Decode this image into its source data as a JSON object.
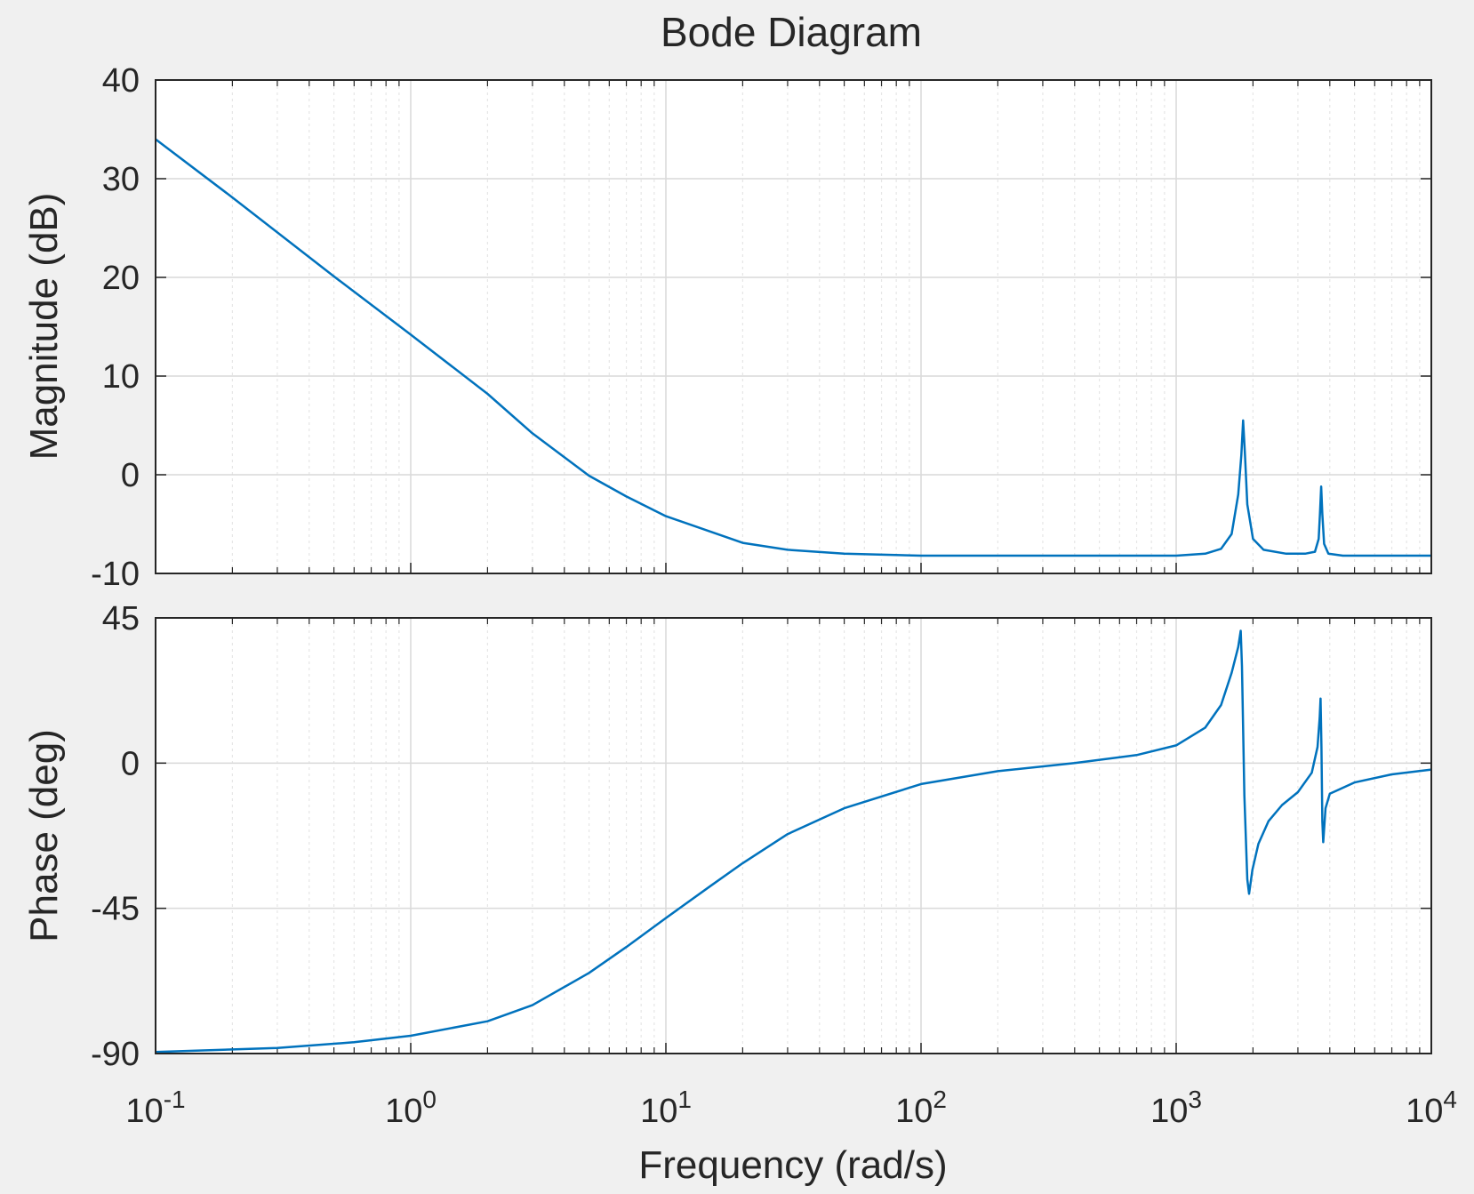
{
  "window": {
    "title": "Bode Diagram"
  },
  "colors": {
    "line": "#0072bd",
    "background": "#f0f0f0",
    "axes_bg": "#ffffff",
    "grid": "#d9d9d9",
    "axis": "#262626"
  },
  "chart_data": {
    "type": "line",
    "title": "Bode Diagram",
    "xlabel": "Frequency  (rad/s)",
    "xscale": "log",
    "xlim": [
      0.1,
      10000
    ],
    "x_ticks": [
      {
        "base": "10",
        "exp": "-1"
      },
      {
        "base": "10",
        "exp": "0"
      },
      {
        "base": "10",
        "exp": "1"
      },
      {
        "base": "10",
        "exp": "2"
      },
      {
        "base": "10",
        "exp": "3"
      },
      {
        "base": "10",
        "exp": "4"
      }
    ],
    "grid": true,
    "magnitude": {
      "ylabel": "Magnitude (dB)",
      "ylim": [
        -10,
        40
      ],
      "yticks": [
        "40",
        "30",
        "20",
        "10",
        "0",
        "-10"
      ],
      "points": [
        [
          0.1,
          34
        ],
        [
          0.2,
          28.1
        ],
        [
          0.5,
          20.1
        ],
        [
          1,
          14.2
        ],
        [
          2,
          8.2
        ],
        [
          3,
          4.2
        ],
        [
          5,
          -0.1
        ],
        [
          7,
          -2.2
        ],
        [
          10,
          -4.2
        ],
        [
          20,
          -6.9
        ],
        [
          30,
          -7.6
        ],
        [
          50,
          -8.0
        ],
        [
          100,
          -8.2
        ],
        [
          500,
          -8.2
        ],
        [
          1000,
          -8.2
        ],
        [
          1300,
          -8.0
        ],
        [
          1500,
          -7.5
        ],
        [
          1650,
          -6
        ],
        [
          1750,
          -2
        ],
        [
          1800,
          2
        ],
        [
          1830,
          5.5
        ],
        [
          1860,
          2
        ],
        [
          1900,
          -3
        ],
        [
          2000,
          -6.5
        ],
        [
          2200,
          -7.6
        ],
        [
          2700,
          -8.0
        ],
        [
          3200,
          -8.0
        ],
        [
          3500,
          -7.8
        ],
        [
          3620,
          -6.5
        ],
        [
          3660,
          -4
        ],
        [
          3700,
          -1.2
        ],
        [
          3740,
          -4
        ],
        [
          3800,
          -7
        ],
        [
          3950,
          -8.0
        ],
        [
          4500,
          -8.2
        ],
        [
          10000,
          -8.2
        ]
      ]
    },
    "phase": {
      "ylabel": "Phase (deg)",
      "ylim": [
        -90,
        45
      ],
      "yticks": [
        "45",
        "0",
        "-45",
        "-90"
      ],
      "points": [
        [
          0.1,
          -89.5
        ],
        [
          0.3,
          -88.3
        ],
        [
          0.6,
          -86.5
        ],
        [
          1,
          -84.5
        ],
        [
          2,
          -80
        ],
        [
          3,
          -75
        ],
        [
          5,
          -65
        ],
        [
          7,
          -57
        ],
        [
          10,
          -48
        ],
        [
          15,
          -38
        ],
        [
          20,
          -31
        ],
        [
          30,
          -22
        ],
        [
          50,
          -14
        ],
        [
          100,
          -6.5
        ],
        [
          200,
          -2.5
        ],
        [
          400,
          0
        ],
        [
          700,
          2.5
        ],
        [
          1000,
          5.5
        ],
        [
          1300,
          11
        ],
        [
          1500,
          18
        ],
        [
          1650,
          28
        ],
        [
          1750,
          36
        ],
        [
          1790,
          41
        ],
        [
          1810,
          30
        ],
        [
          1850,
          -10
        ],
        [
          1900,
          -36
        ],
        [
          1930,
          -40.5
        ],
        [
          1990,
          -33
        ],
        [
          2100,
          -25
        ],
        [
          2300,
          -18
        ],
        [
          2600,
          -13
        ],
        [
          3000,
          -9
        ],
        [
          3400,
          -3
        ],
        [
          3580,
          5
        ],
        [
          3650,
          14
        ],
        [
          3680,
          20
        ],
        [
          3710,
          5
        ],
        [
          3740,
          -18
        ],
        [
          3770,
          -24.5
        ],
        [
          3850,
          -14
        ],
        [
          4000,
          -9.5
        ],
        [
          5000,
          -6
        ],
        [
          7000,
          -3.5
        ],
        [
          10000,
          -2
        ]
      ]
    }
  }
}
